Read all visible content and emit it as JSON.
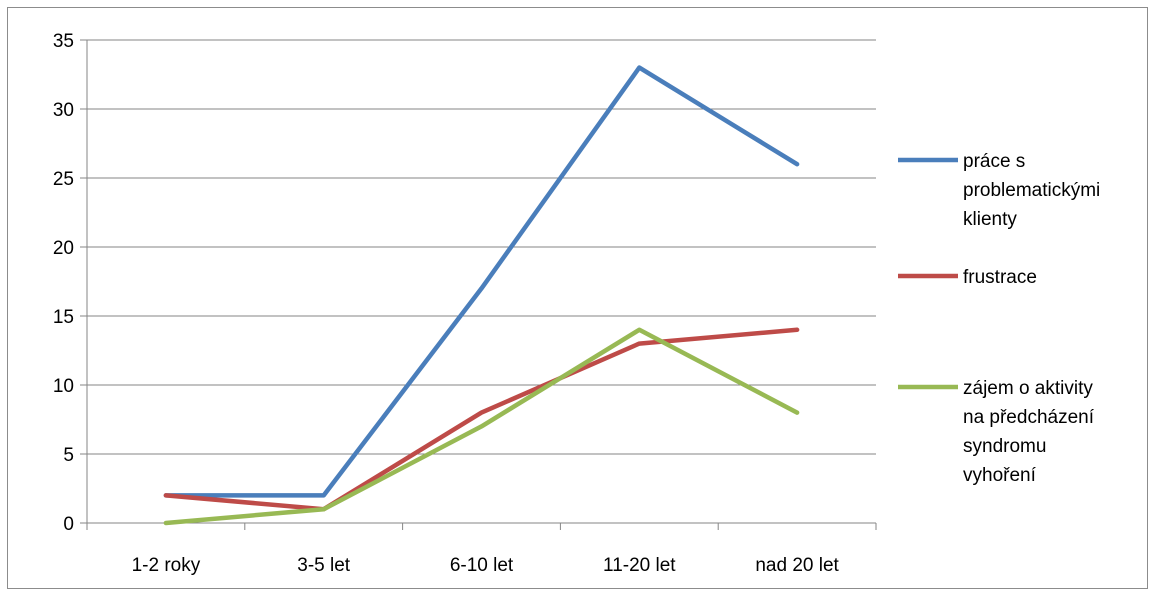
{
  "chart_data": {
    "type": "line",
    "categories": [
      "1-2 roky",
      "3-5 let",
      "6-10 let",
      "11-20 let",
      "nad 20 let"
    ],
    "ylim": [
      0,
      35
    ],
    "yticks": [
      0,
      5,
      10,
      15,
      20,
      25,
      30,
      35
    ],
    "grid": true,
    "legend_position": "right",
    "series": [
      {
        "name": "práce s problematickými klienty",
        "color": "#4a7ebb",
        "values": [
          2,
          2,
          17,
          33,
          26
        ]
      },
      {
        "name": "frustrace",
        "color": "#be4b48",
        "values": [
          2,
          1,
          8,
          13,
          14
        ]
      },
      {
        "name": "zájem o aktivity na předcházení syndromu vyhoření",
        "color": "#98b954",
        "values": [
          0,
          1,
          7,
          14,
          8
        ]
      }
    ]
  },
  "legend": {
    "items": [
      {
        "lines": [
          "práce s",
          "problematickými",
          "klienty"
        ]
      },
      {
        "lines": [
          "frustrace"
        ]
      },
      {
        "lines": [
          "zájem o aktivity",
          "na předcházení",
          "syndromu",
          "vyhoření"
        ]
      }
    ]
  }
}
